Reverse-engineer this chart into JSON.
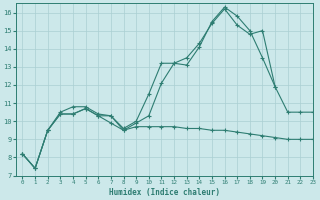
{
  "bg_color": "#cce8ea",
  "grid_color": "#aacfd2",
  "line_color": "#2e7d72",
  "xlabel": "Humidex (Indice chaleur)",
  "xlim": [
    -0.5,
    23
  ],
  "ylim": [
    7,
    16.5
  ],
  "xticks": [
    0,
    1,
    2,
    3,
    4,
    5,
    6,
    7,
    8,
    9,
    10,
    11,
    12,
    13,
    14,
    15,
    16,
    17,
    18,
    19,
    20,
    21,
    22,
    23
  ],
  "yticks": [
    7,
    8,
    9,
    10,
    11,
    12,
    13,
    14,
    15,
    16
  ],
  "line1_x": [
    0,
    1,
    2,
    3,
    4,
    5,
    6,
    7,
    8,
    9,
    10,
    11,
    12,
    13,
    14,
    15,
    16,
    17,
    18,
    19,
    20
  ],
  "line1_y": [
    8.2,
    7.4,
    9.5,
    10.5,
    10.8,
    10.8,
    10.4,
    10.3,
    9.6,
    10.0,
    11.5,
    13.2,
    13.2,
    13.5,
    14.3,
    15.4,
    16.2,
    15.3,
    14.8,
    15.0,
    11.9
  ],
  "line2_x": [
    0,
    1,
    2,
    3,
    4,
    5,
    6,
    7,
    8,
    9,
    10,
    11,
    12,
    13,
    14,
    15,
    16,
    17,
    18,
    19,
    20,
    21,
    22,
    23
  ],
  "line2_y": [
    8.2,
    7.4,
    9.5,
    10.4,
    10.4,
    10.7,
    10.3,
    9.9,
    9.5,
    9.9,
    10.3,
    12.1,
    13.2,
    13.1,
    14.1,
    15.5,
    16.3,
    15.8,
    15.0,
    13.5,
    11.9,
    10.5,
    10.5,
    10.5
  ],
  "line3_x": [
    0,
    1,
    2,
    3,
    4,
    5,
    6,
    7,
    8,
    9,
    10,
    11,
    12,
    13,
    14,
    15,
    16,
    17,
    18,
    19,
    20,
    21,
    22,
    23
  ],
  "line3_y": [
    8.2,
    7.4,
    9.5,
    10.4,
    10.4,
    10.7,
    10.3,
    10.3,
    9.5,
    9.7,
    9.7,
    9.7,
    9.7,
    9.6,
    9.6,
    9.5,
    9.5,
    9.4,
    9.3,
    9.2,
    9.1,
    9.0,
    9.0,
    9.0
  ]
}
